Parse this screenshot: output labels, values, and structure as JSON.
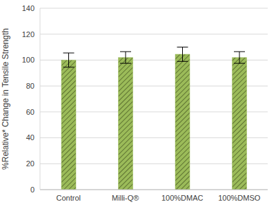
{
  "chart_data": {
    "type": "bar",
    "y_label": "%Relative* Change in Tensile Strength",
    "categories": [
      "Control",
      "Milli-Q®",
      "100%DMAC",
      "100%DMSO"
    ],
    "values": [
      100,
      102,
      104.5,
      102
    ],
    "errors": [
      5.5,
      4.5,
      5.5,
      4.5
    ],
    "color": "#9bbb59",
    "ylim": [
      0,
      140
    ],
    "yticks": [
      0,
      20,
      40,
      60,
      80,
      100,
      120,
      140
    ],
    "grid": true
  }
}
